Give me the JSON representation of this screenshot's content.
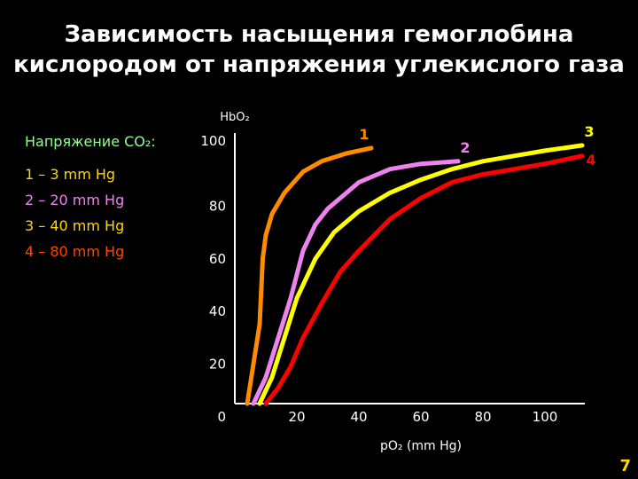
{
  "title_lines": [
    "Зависимость насыщения гемоглобина",
    "кислородом от напряжения углекислого газа"
  ],
  "legend": {
    "title": "Напряжение CO₂:",
    "items": [
      {
        "label": "1 – 3 mm Hg",
        "color": "#ffd700"
      },
      {
        "label": "2 – 20 mm Hg",
        "color": "#ee82ee"
      },
      {
        "label": "3 – 40 mm Hg",
        "color": "#ffd700"
      },
      {
        "label": "4 – 80 mm Hg",
        "color": "#ff4500"
      }
    ]
  },
  "page_number": "7",
  "chart_data": {
    "type": "line",
    "ylabel": "HbO₂",
    "xlabel": "pO₂ (mm Hg)",
    "xlim": [
      0,
      110
    ],
    "ylim": [
      0,
      100
    ],
    "xticks": [
      20,
      40,
      60,
      80,
      100
    ],
    "yticks": [
      0,
      20,
      40,
      60,
      80,
      100
    ],
    "grid": false,
    "series": [
      {
        "name": "1",
        "color": "#ff8c00",
        "x": [
          4,
          6,
          8,
          9,
          10,
          12,
          16,
          22,
          28,
          36,
          44
        ],
        "y": [
          0,
          15,
          30,
          55,
          64,
          72,
          80,
          88,
          92,
          95,
          97
        ]
      },
      {
        "name": "2",
        "color": "#ee82ee",
        "x": [
          6,
          10,
          14,
          18,
          22,
          26,
          30,
          40,
          50,
          60,
          72
        ],
        "y": [
          0,
          10,
          25,
          40,
          58,
          68,
          74,
          84,
          89,
          91,
          92
        ]
      },
      {
        "name": "3",
        "color": "#ffff00",
        "x": [
          8,
          12,
          16,
          20,
          26,
          32,
          40,
          50,
          60,
          70,
          80,
          90,
          100,
          112
        ],
        "y": [
          0,
          10,
          25,
          40,
          55,
          65,
          73,
          80,
          85,
          89,
          92,
          94,
          96,
          98
        ]
      },
      {
        "name": "4",
        "color": "#ff0000",
        "x": [
          10,
          14,
          18,
          22,
          28,
          34,
          40,
          50,
          60,
          70,
          80,
          90,
          100,
          112
        ],
        "y": [
          0,
          6,
          14,
          25,
          38,
          50,
          58,
          70,
          78,
          84,
          87,
          89,
          91,
          94
        ]
      }
    ]
  }
}
